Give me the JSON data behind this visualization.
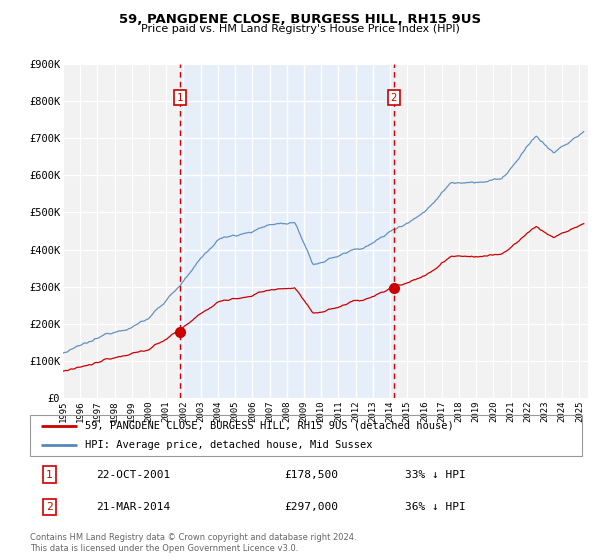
{
  "title": "59, PANGDENE CLOSE, BURGESS HILL, RH15 9US",
  "subtitle": "Price paid vs. HM Land Registry's House Price Index (HPI)",
  "legend_line1": "59, PANGDENE CLOSE, BURGESS HILL, RH15 9US (detached house)",
  "legend_line2": "HPI: Average price, detached house, Mid Sussex",
  "red_line_color": "#cc0000",
  "blue_line_color": "#5588bb",
  "plot_bg_color": "#f5f5f5",
  "grid_color": "#cccccc",
  "shade_color": "#ddeeff",
  "shade_alpha": 0.55,
  "ylim": [
    0,
    900000
  ],
  "yticks": [
    0,
    100000,
    200000,
    300000,
    400000,
    500000,
    600000,
    700000,
    800000,
    900000
  ],
  "ytick_labels": [
    "£0",
    "£100K",
    "£200K",
    "£300K",
    "£400K",
    "£500K",
    "£600K",
    "£700K",
    "£800K",
    "£900K"
  ],
  "transaction1_date": "22-OCT-2001",
  "transaction1_price": 178500,
  "transaction1_pct": "33%",
  "transaction1_x": 2001.81,
  "transaction2_date": "21-MAR-2014",
  "transaction2_price": 297000,
  "transaction2_pct": "36%",
  "transaction2_x": 2014.22,
  "footer": "Contains HM Land Registry data © Crown copyright and database right 2024.\nThis data is licensed under the Open Government Licence v3.0.",
  "xlim_start": 1995.0,
  "xlim_end": 2025.5,
  "xticks": [
    1995,
    1996,
    1997,
    1998,
    1999,
    2000,
    2001,
    2002,
    2003,
    2004,
    2005,
    2006,
    2007,
    2008,
    2009,
    2010,
    2011,
    2012,
    2013,
    2014,
    2015,
    2016,
    2017,
    2018,
    2019,
    2020,
    2021,
    2022,
    2023,
    2024,
    2025
  ],
  "fig_width": 6.0,
  "fig_height": 5.6,
  "dpi": 100
}
